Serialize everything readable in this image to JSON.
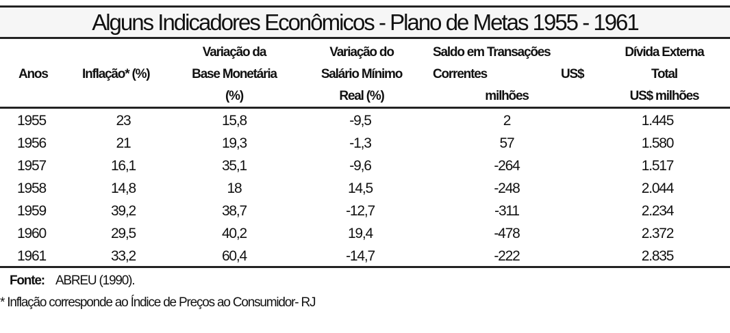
{
  "title": "Alguns Indicadores Econômicos - Plano de Metas 1955 - 1961",
  "headers": {
    "anos": "Anos",
    "inflacao": "Inflação* (%)",
    "base": [
      "Variação da",
      "Base Monetária",
      "(%)"
    ],
    "salario": [
      "Variação do",
      "Salário Mínimo",
      "Real (%)"
    ],
    "saldo": [
      "Saldo em Transações",
      "Correntes",
      "US$",
      "milhões"
    ],
    "divida": [
      "Dívida Externa",
      "Total",
      "US$ milhões"
    ]
  },
  "rows": [
    [
      "1955",
      "23",
      "15,8",
      "-9,5",
      "2",
      "1.445"
    ],
    [
      "1956",
      "21",
      "19,3",
      "-1,3",
      "57",
      "1.580"
    ],
    [
      "1957",
      "16,1",
      "35,1",
      "-9,6",
      "-264",
      "1.517"
    ],
    [
      "1958",
      "14,8",
      "18",
      "14,5",
      "-248",
      "2.044"
    ],
    [
      "1959",
      "39,2",
      "38,7",
      "-12,7",
      "-311",
      "2.234"
    ],
    [
      "1960",
      "29,5",
      "40,2",
      "19,4",
      "-478",
      "2.372"
    ],
    [
      "1961",
      "33,2",
      "60,4",
      "-14,7",
      "-222",
      "2.835"
    ]
  ],
  "footer": {
    "fonte_label": "Fonte:",
    "fonte_value": "ABREU (1990).",
    "note": "* Inflação corresponde ao Índice de Preços ao Consumidor- RJ"
  }
}
